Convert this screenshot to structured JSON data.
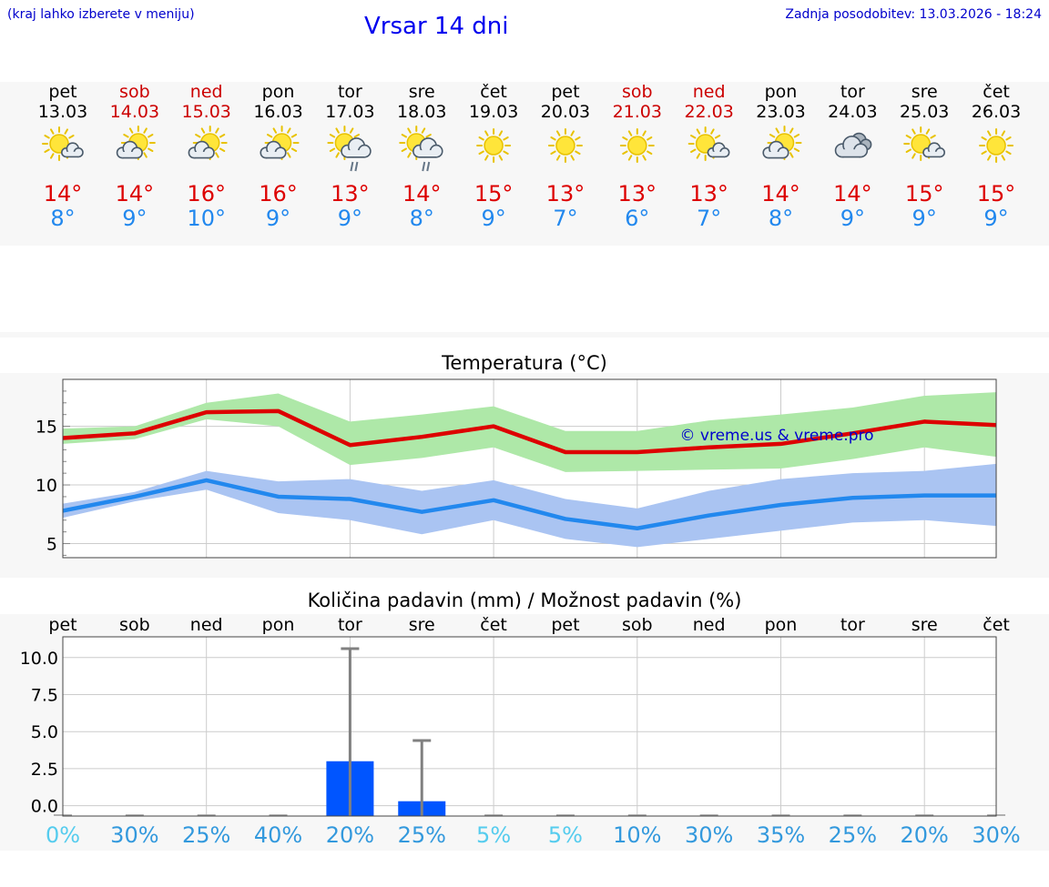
{
  "header": {
    "hint": "(kraj lahko izberete v meniju)",
    "title": "Vrsar 14 dni",
    "updated": "Zadnja posodobitev: 13.03.2026 - 18:24"
  },
  "colors": {
    "weekday": "#000000",
    "weekend": "#cc0000",
    "tmax": "#dd0000",
    "tmin": "#2288ee",
    "tmax_band": "#aee8a8",
    "tmin_band": "#aac4f2",
    "bar": "#0055ff",
    "whisker": "#808080",
    "prob_high": "#3399dd",
    "prob_low": "#55ccee"
  },
  "days": [
    {
      "dow": "pet",
      "date": "13.03",
      "weekend": false,
      "icon": "partly-cloudy-sun-icon",
      "tmax": "14°",
      "tmin": "8°"
    },
    {
      "dow": "sob",
      "date": "14.03",
      "weekend": true,
      "icon": "sun-behind-cloud-icon",
      "tmax": "14°",
      "tmin": "9°"
    },
    {
      "dow": "ned",
      "date": "15.03",
      "weekend": true,
      "icon": "sun-behind-cloud-icon",
      "tmax": "16°",
      "tmin": "10°"
    },
    {
      "dow": "pon",
      "date": "16.03",
      "weekend": false,
      "icon": "sun-behind-cloud-icon",
      "tmax": "16°",
      "tmin": "9°"
    },
    {
      "dow": "tor",
      "date": "17.03",
      "weekend": false,
      "icon": "sun-cloud-rain-icon",
      "tmax": "13°",
      "tmin": "9°"
    },
    {
      "dow": "sre",
      "date": "18.03",
      "weekend": false,
      "icon": "sun-cloud-rain-icon",
      "tmax": "14°",
      "tmin": "8°"
    },
    {
      "dow": "čet",
      "date": "19.03",
      "weekend": false,
      "icon": "sun-icon",
      "tmax": "15°",
      "tmin": "9°"
    },
    {
      "dow": "pet",
      "date": "20.03",
      "weekend": false,
      "icon": "sun-icon",
      "tmax": "13°",
      "tmin": "7°"
    },
    {
      "dow": "sob",
      "date": "21.03",
      "weekend": true,
      "icon": "sun-icon",
      "tmax": "13°",
      "tmin": "6°"
    },
    {
      "dow": "ned",
      "date": "22.03",
      "weekend": true,
      "icon": "partly-cloudy-sun-icon",
      "tmax": "13°",
      "tmin": "7°"
    },
    {
      "dow": "pon",
      "date": "23.03",
      "weekend": false,
      "icon": "sun-behind-cloud-icon",
      "tmax": "14°",
      "tmin": "8°"
    },
    {
      "dow": "tor",
      "date": "24.03",
      "weekend": false,
      "icon": "cloudy-icon",
      "tmax": "14°",
      "tmin": "9°"
    },
    {
      "dow": "sre",
      "date": "25.03",
      "weekend": false,
      "icon": "partly-cloudy-sun-icon",
      "tmax": "15°",
      "tmin": "9°"
    },
    {
      "dow": "čet",
      "date": "26.03",
      "weekend": false,
      "icon": "sun-icon",
      "tmax": "15°",
      "tmin": "9°"
    }
  ],
  "chart_data": [
    {
      "type": "line",
      "title": "Temperatura (°C)",
      "watermark": "© vreme.us & vreme.pro",
      "ylim": [
        3.8,
        19
      ],
      "yticks": [
        5,
        10,
        15
      ],
      "categories": [
        "pet",
        "sob",
        "ned",
        "pon",
        "tor",
        "sre",
        "čet",
        "pet",
        "sob",
        "ned",
        "pon",
        "tor",
        "sre",
        "čet"
      ],
      "series": [
        {
          "name": "tmax",
          "values": [
            14.0,
            14.4,
            16.2,
            16.3,
            13.4,
            14.1,
            15.0,
            12.8,
            12.8,
            13.2,
            13.5,
            14.4,
            15.4,
            15.1
          ]
        },
        {
          "name": "tmax_upper",
          "values": [
            14.8,
            15.0,
            17.0,
            17.8,
            15.4,
            16.0,
            16.7,
            14.6,
            14.6,
            15.5,
            16.0,
            16.6,
            17.6,
            17.9
          ]
        },
        {
          "name": "tmax_lower",
          "values": [
            13.5,
            13.9,
            15.6,
            15.0,
            11.7,
            12.3,
            13.2,
            11.1,
            11.2,
            11.3,
            11.4,
            12.2,
            13.2,
            12.4
          ]
        },
        {
          "name": "tmin",
          "values": [
            7.8,
            9.0,
            10.4,
            9.0,
            8.8,
            7.7,
            8.7,
            7.1,
            6.3,
            7.4,
            8.3,
            8.9,
            9.1,
            9.1
          ]
        },
        {
          "name": "tmin_upper",
          "values": [
            8.4,
            9.4,
            11.2,
            10.3,
            10.5,
            9.5,
            10.4,
            8.8,
            8.0,
            9.5,
            10.5,
            11.0,
            11.2,
            11.8
          ]
        },
        {
          "name": "tmin_lower",
          "values": [
            7.2,
            8.6,
            9.6,
            7.6,
            7.0,
            5.8,
            7.0,
            5.4,
            4.7,
            5.4,
            6.1,
            6.8,
            7.0,
            6.5
          ]
        }
      ]
    },
    {
      "type": "bar",
      "title": "Količina padavin (mm) / Možnost padavin (%)",
      "ylim": [
        -0.7,
        11.4
      ],
      "yticks": [
        "0.0",
        "2.5",
        "5.0",
        "7.5",
        "10.0"
      ],
      "categories": [
        "pet",
        "sob",
        "ned",
        "pon",
        "tor",
        "sre",
        "čet",
        "pet",
        "sob",
        "ned",
        "pon",
        "tor",
        "sre",
        "čet"
      ],
      "values": [
        0,
        0,
        0,
        0,
        3.0,
        0.3,
        0,
        0,
        0,
        0,
        0,
        0,
        0,
        0
      ],
      "whisker_max": [
        0,
        0,
        0,
        0,
        10.6,
        4.4,
        0,
        0,
        0,
        0,
        0,
        0,
        0,
        0
      ],
      "probability": [
        "0%",
        "30%",
        "25%",
        "40%",
        "20%",
        "25%",
        "5%",
        "5%",
        "10%",
        "30%",
        "35%",
        "25%",
        "20%",
        "30%"
      ],
      "probability_values": [
        0,
        30,
        25,
        40,
        20,
        25,
        5,
        5,
        10,
        30,
        35,
        25,
        20,
        30
      ]
    }
  ]
}
